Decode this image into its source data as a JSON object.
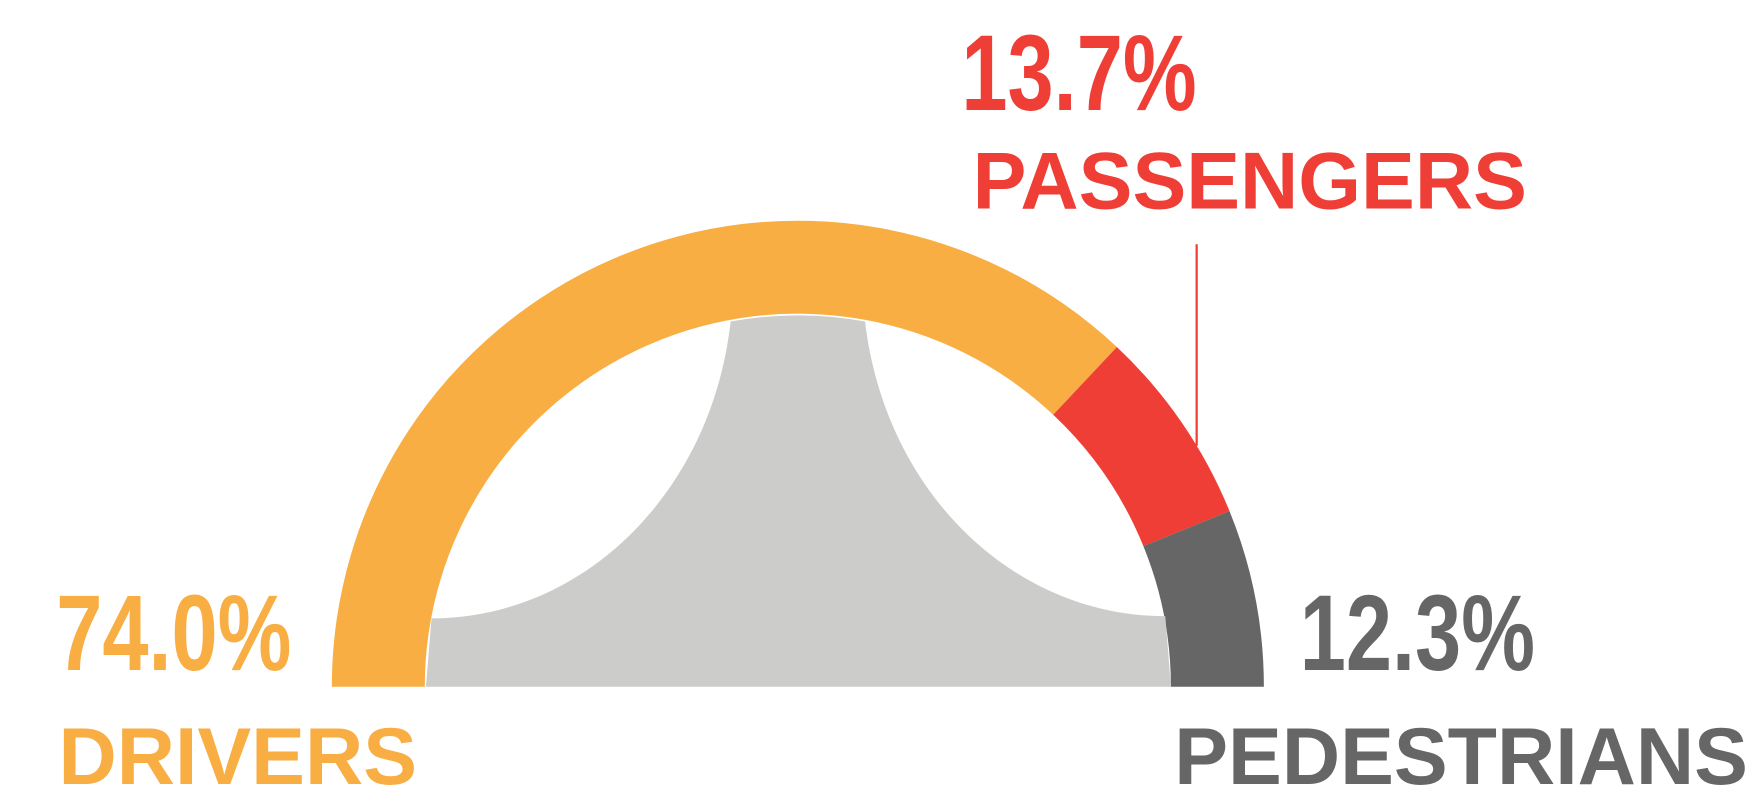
{
  "chart_data": {
    "type": "pie",
    "shape": "half-donut",
    "categories": [
      "DRIVERS",
      "PASSENGERS",
      "PEDESTRIANS"
    ],
    "values": [
      74.0,
      13.7,
      12.3
    ],
    "value_labels": [
      "74.0%",
      "13.7%",
      "12.3%"
    ],
    "colors": [
      "#f8ae42",
      "#ee3e36",
      "#666666"
    ]
  }
}
